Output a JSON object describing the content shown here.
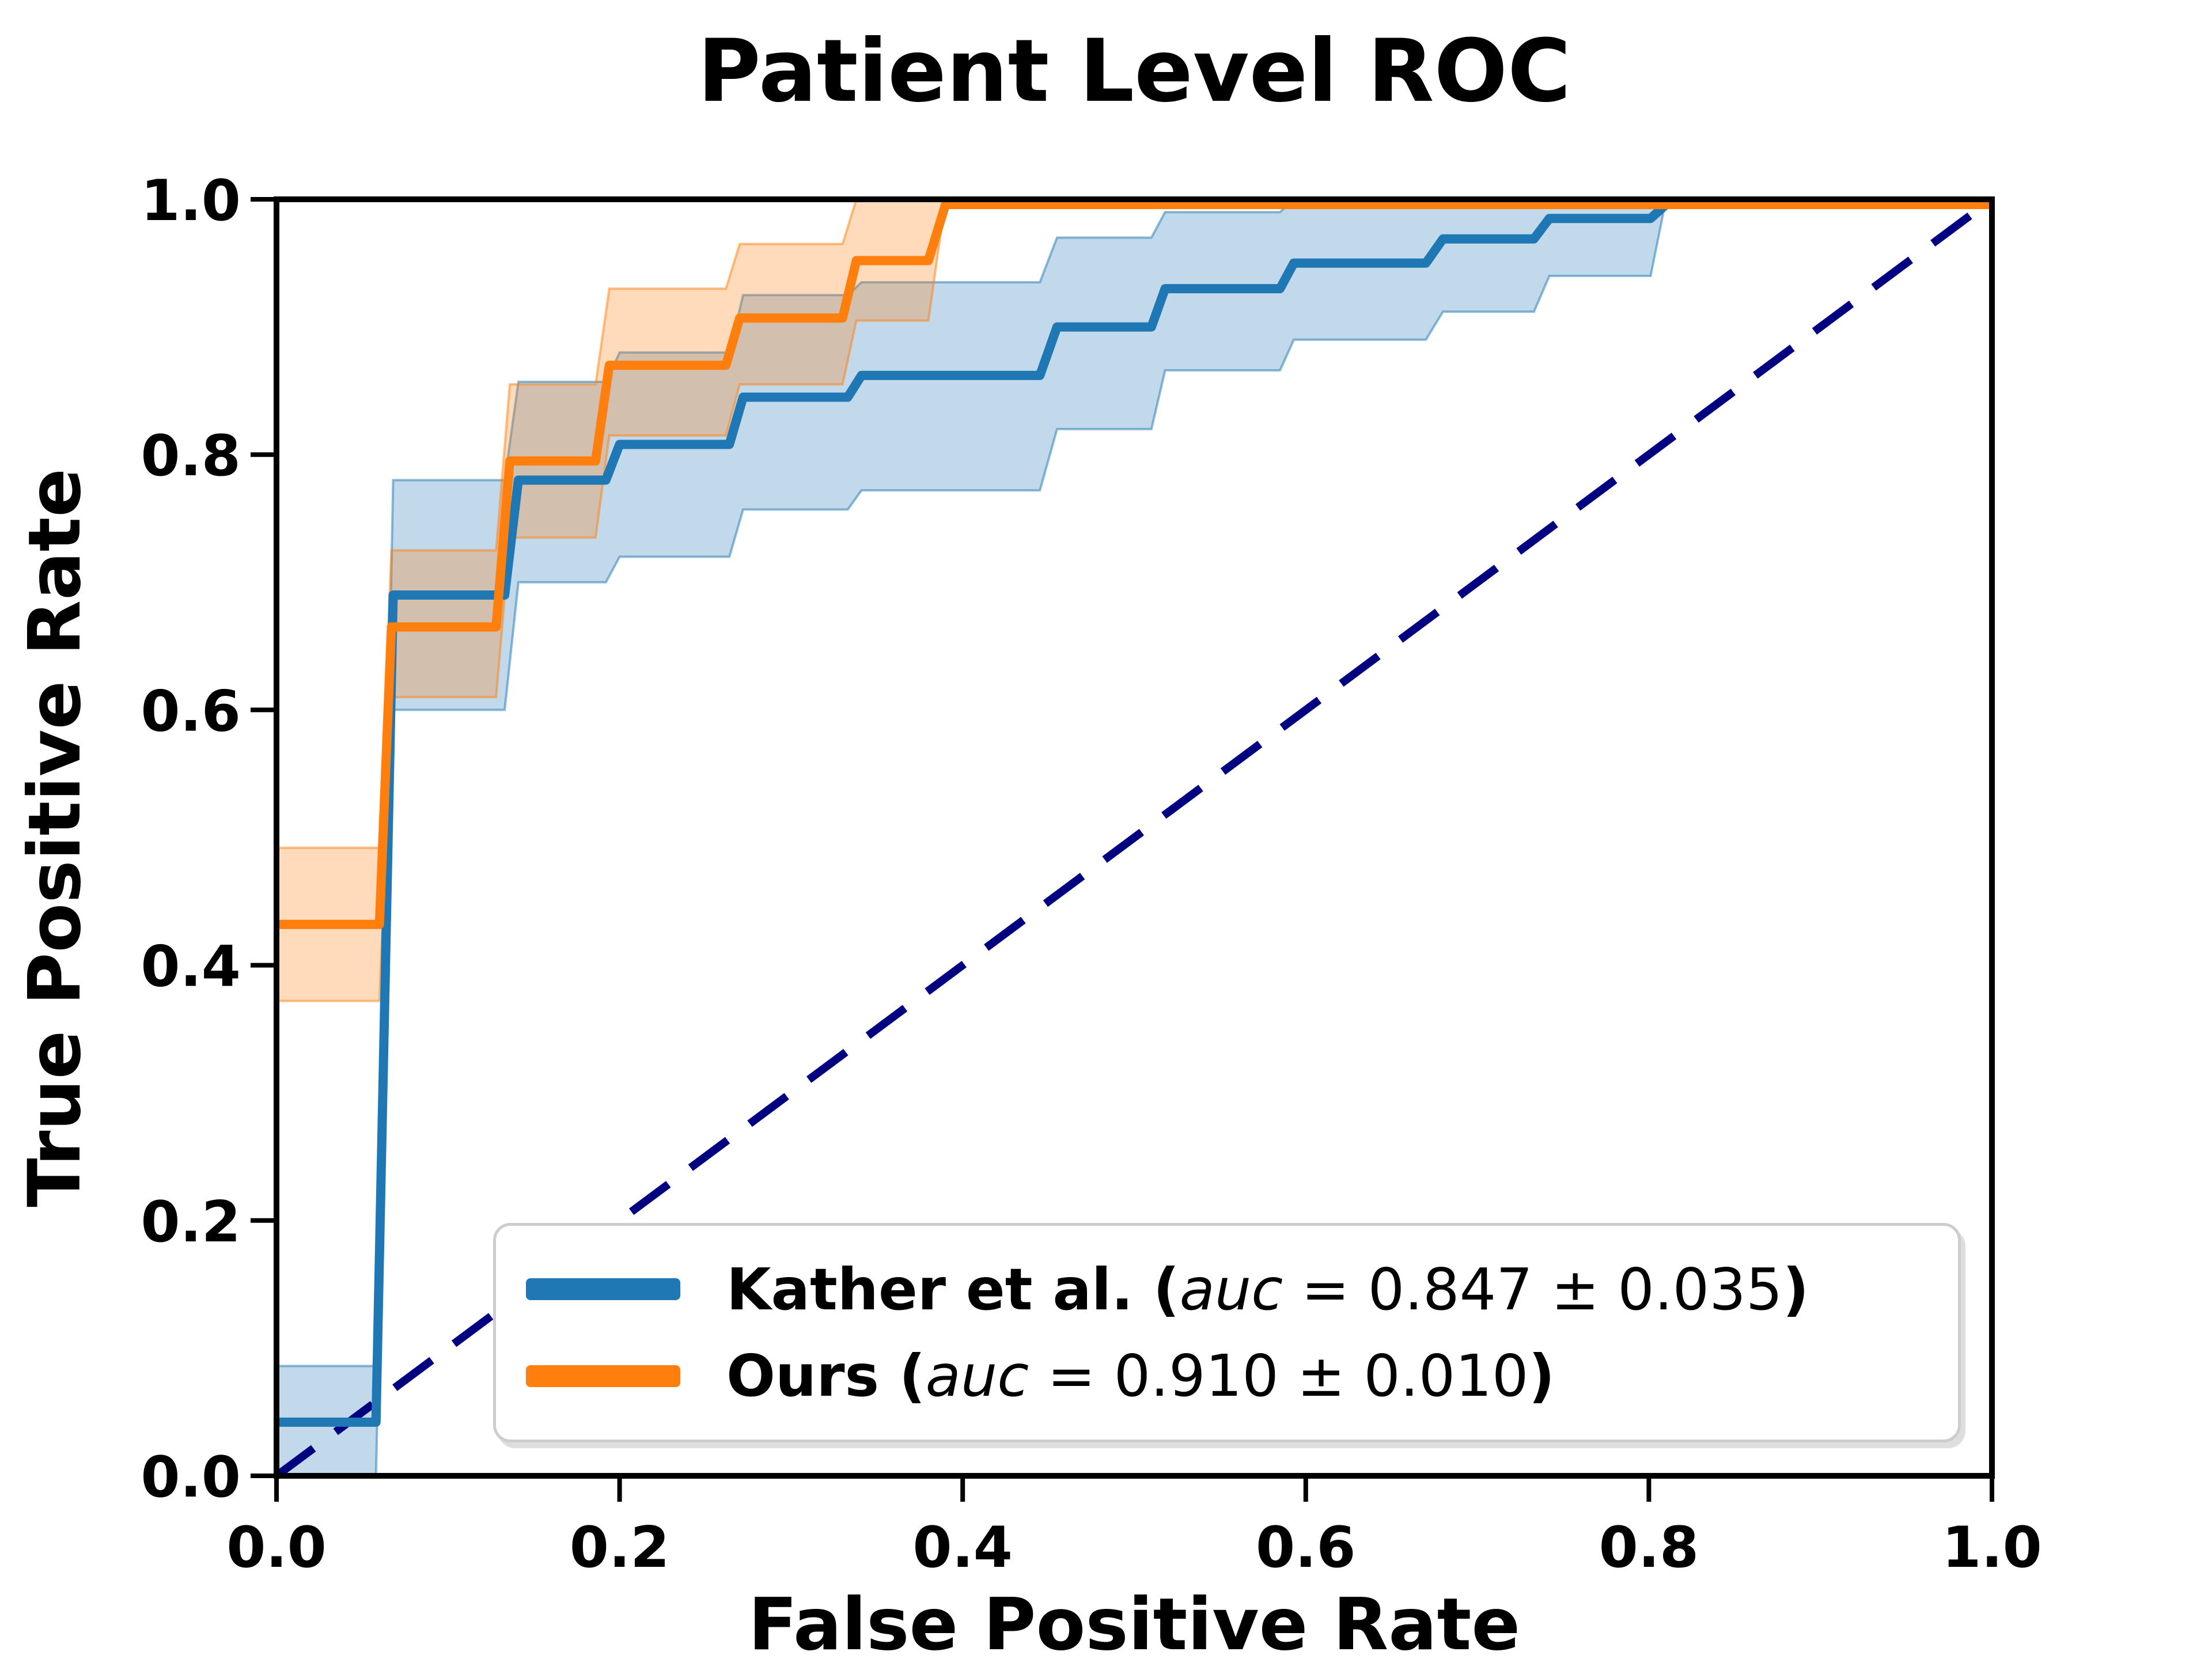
{
  "figure": {
    "title": "Patient Level ROC",
    "xlabel": "False Positive Rate",
    "ylabel": "True Positive Rate"
  },
  "legend": {
    "items": [
      {
        "name_bold": "Kather et al. (",
        "auc_italic": "auc",
        "value_text": " = 0.847 ± 0.035",
        "close_bold": ")",
        "color": "#1f77b4"
      },
      {
        "name_bold": "Ours (",
        "auc_italic": "auc",
        "value_text": " = 0.910 ± 0.010",
        "close_bold": ")",
        "color": "#ff7f0e"
      }
    ]
  },
  "chart_data": {
    "type": "line",
    "title": "Patient Level ROC",
    "xlabel": "False Positive Rate",
    "ylabel": "True Positive Rate",
    "xlim": [
      0,
      1
    ],
    "ylim": [
      0,
      1
    ],
    "x_ticks": [
      "0.0",
      "0.2",
      "0.4",
      "0.6",
      "0.8",
      "1.0"
    ],
    "y_ticks": [
      "0.0",
      "0.2",
      "0.4",
      "0.6",
      "0.8",
      "1.0"
    ],
    "grid": false,
    "legend_position": "lower right",
    "diagonal": {
      "style": "dashed",
      "color": "#000080",
      "from": [
        0,
        0
      ],
      "to": [
        1,
        1
      ]
    },
    "series": [
      {
        "name": "Kather et al.",
        "auc": "0.847 ± 0.035",
        "color": "#1f77b4",
        "band_fill": "rgba(31,119,180,0.28)",
        "band_edge": "rgba(31,119,180,0.50)",
        "points": [
          [
            0.0,
            0.042
          ],
          [
            0.058,
            0.042
          ],
          [
            0.068,
            0.69
          ],
          [
            0.133,
            0.69
          ],
          [
            0.141,
            0.78
          ],
          [
            0.192,
            0.78
          ],
          [
            0.2,
            0.808
          ],
          [
            0.264,
            0.808
          ],
          [
            0.272,
            0.845
          ],
          [
            0.333,
            0.845
          ],
          [
            0.341,
            0.862
          ],
          [
            0.445,
            0.862
          ],
          [
            0.455,
            0.9
          ],
          [
            0.51,
            0.9
          ],
          [
            0.518,
            0.93
          ],
          [
            0.585,
            0.93
          ],
          [
            0.593,
            0.95
          ],
          [
            0.67,
            0.95
          ],
          [
            0.68,
            0.969
          ],
          [
            0.733,
            0.969
          ],
          [
            0.742,
            0.985
          ],
          [
            0.801,
            0.985
          ],
          [
            0.81,
            1.0
          ],
          [
            1.0,
            1.0
          ]
        ],
        "band_lower": [
          [
            0.0,
            0.0
          ],
          [
            0.058,
            0.0
          ],
          [
            0.068,
            0.6
          ],
          [
            0.133,
            0.6
          ],
          [
            0.141,
            0.7
          ],
          [
            0.192,
            0.7
          ],
          [
            0.2,
            0.72
          ],
          [
            0.264,
            0.72
          ],
          [
            0.272,
            0.757
          ],
          [
            0.333,
            0.757
          ],
          [
            0.341,
            0.772
          ],
          [
            0.445,
            0.772
          ],
          [
            0.455,
            0.82
          ],
          [
            0.51,
            0.82
          ],
          [
            0.518,
            0.866
          ],
          [
            0.585,
            0.866
          ],
          [
            0.593,
            0.89
          ],
          [
            0.67,
            0.89
          ],
          [
            0.68,
            0.912
          ],
          [
            0.733,
            0.912
          ],
          [
            0.742,
            0.94
          ],
          [
            0.801,
            0.94
          ],
          [
            0.81,
            1.0
          ],
          [
            1.0,
            1.0
          ]
        ],
        "band_upper": [
          [
            0.0,
            0.086
          ],
          [
            0.058,
            0.086
          ],
          [
            0.068,
            0.78
          ],
          [
            0.133,
            0.78
          ],
          [
            0.141,
            0.857
          ],
          [
            0.192,
            0.857
          ],
          [
            0.2,
            0.88
          ],
          [
            0.264,
            0.88
          ],
          [
            0.272,
            0.925
          ],
          [
            0.333,
            0.925
          ],
          [
            0.341,
            0.935
          ],
          [
            0.445,
            0.935
          ],
          [
            0.455,
            0.97
          ],
          [
            0.51,
            0.97
          ],
          [
            0.518,
            0.99
          ],
          [
            0.585,
            0.99
          ],
          [
            0.593,
            1.0
          ],
          [
            0.81,
            1.0
          ],
          [
            1.0,
            1.0
          ]
        ]
      },
      {
        "name": "Ours",
        "auc": "0.910 ± 0.010",
        "color": "#ff7f0e",
        "band_fill": "rgba(255,127,14,0.28)",
        "band_edge": "rgba(255,127,14,0.50)",
        "points": [
          [
            0.0,
            0.432
          ],
          [
            0.06,
            0.432
          ],
          [
            0.067,
            0.665
          ],
          [
            0.128,
            0.665
          ],
          [
            0.136,
            0.795
          ],
          [
            0.186,
            0.795
          ],
          [
            0.194,
            0.87
          ],
          [
            0.262,
            0.87
          ],
          [
            0.27,
            0.907
          ],
          [
            0.33,
            0.907
          ],
          [
            0.338,
            0.952
          ],
          [
            0.38,
            0.952
          ],
          [
            0.39,
            1.0
          ],
          [
            1.0,
            1.0
          ]
        ],
        "band_lower": [
          [
            0.0,
            0.372
          ],
          [
            0.06,
            0.372
          ],
          [
            0.067,
            0.61
          ],
          [
            0.128,
            0.61
          ],
          [
            0.136,
            0.735
          ],
          [
            0.186,
            0.735
          ],
          [
            0.194,
            0.815
          ],
          [
            0.262,
            0.815
          ],
          [
            0.27,
            0.855
          ],
          [
            0.33,
            0.855
          ],
          [
            0.338,
            0.905
          ],
          [
            0.38,
            0.905
          ],
          [
            0.39,
            1.0
          ]
        ],
        "band_upper": [
          [
            0.0,
            0.492
          ],
          [
            0.06,
            0.492
          ],
          [
            0.067,
            0.725
          ],
          [
            0.128,
            0.725
          ],
          [
            0.136,
            0.855
          ],
          [
            0.186,
            0.855
          ],
          [
            0.194,
            0.93
          ],
          [
            0.262,
            0.93
          ],
          [
            0.27,
            0.965
          ],
          [
            0.33,
            0.965
          ],
          [
            0.338,
            1.0
          ],
          [
            0.39,
            1.0
          ]
        ]
      }
    ]
  }
}
